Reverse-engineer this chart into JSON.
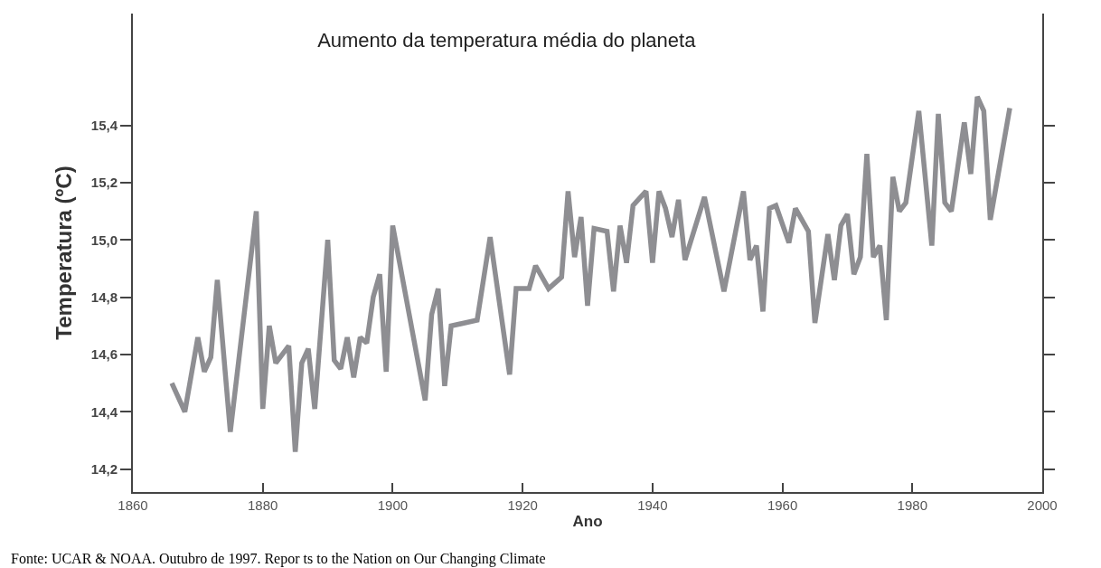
{
  "chart_data": {
    "type": "line",
    "title": "Aumento da temperatura média do planeta",
    "xlabel": "Ano",
    "ylabel": "Temperatura (ºC)",
    "x": [
      1866,
      1868,
      1870,
      1871,
      1872,
      1873,
      1875,
      1879,
      1880,
      1881,
      1882,
      1884,
      1885,
      1886,
      1887,
      1888,
      1890,
      1891,
      1892,
      1893,
      1894,
      1895,
      1896,
      1897,
      1898,
      1899,
      1900,
      1905,
      1906,
      1907,
      1908,
      1909,
      1913,
      1915,
      1918,
      1919,
      1921,
      1922,
      1924,
      1926,
      1927,
      1928,
      1929,
      1930,
      1931,
      1933,
      1934,
      1935,
      1936,
      1937,
      1939,
      1940,
      1941,
      1942,
      1943,
      1944,
      1945,
      1948,
      1951,
      1954,
      1955,
      1956,
      1957,
      1958,
      1959,
      1961,
      1962,
      1964,
      1965,
      1967,
      1968,
      1969,
      1970,
      1971,
      1972,
      1973,
      1974,
      1975,
      1976,
      1977,
      1978,
      1979,
      1981,
      1983,
      1984,
      1985,
      1986,
      1988,
      1989,
      1990,
      1991,
      1992,
      1995
    ],
    "series": [
      {
        "color": "#8e8e92",
        "values": [
          14.5,
          14.4,
          14.66,
          14.54,
          14.59,
          14.86,
          14.33,
          15.1,
          14.41,
          14.7,
          14.57,
          14.63,
          14.26,
          14.57,
          14.62,
          14.41,
          15.0,
          14.58,
          14.55,
          14.66,
          14.52,
          14.66,
          14.64,
          14.8,
          14.88,
          14.54,
          15.05,
          14.44,
          14.74,
          14.83,
          14.49,
          14.7,
          14.72,
          15.01,
          14.53,
          14.83,
          14.83,
          14.91,
          14.83,
          14.87,
          15.17,
          14.94,
          15.08,
          14.77,
          15.04,
          15.03,
          14.82,
          15.05,
          14.92,
          15.12,
          15.17,
          14.92,
          15.17,
          15.11,
          15.01,
          15.14,
          14.93,
          15.15,
          14.82,
          15.17,
          14.93,
          14.98,
          14.75,
          15.11,
          15.12,
          14.99,
          15.11,
          15.03,
          14.71,
          15.02,
          14.86,
          15.05,
          15.09,
          14.88,
          14.94,
          15.3,
          14.94,
          14.98,
          14.72,
          15.22,
          15.1,
          15.13,
          15.45,
          14.98,
          15.44,
          15.13,
          15.1,
          15.41,
          15.23,
          15.5,
          15.45,
          15.07,
          15.46
        ]
      }
    ],
    "xlim": [
      1860,
      2000
    ],
    "xticks": [
      1860,
      1880,
      1900,
      1920,
      1940,
      1960,
      1980,
      2000
    ],
    "ylim": [
      14.12,
      15.79
    ],
    "yticks": [
      {
        "value": 14.2,
        "label": "14,2"
      },
      {
        "value": 14.4,
        "label": "14,4"
      },
      {
        "value": 14.6,
        "label": "14,6"
      },
      {
        "value": 14.8,
        "label": "14,8"
      },
      {
        "value": 15.0,
        "label": "15,0"
      },
      {
        "value": 15.2,
        "label": "15,2"
      },
      {
        "value": 15.4,
        "label": "15,4"
      }
    ],
    "marker": "none",
    "line_style": "solid",
    "annotations": [
      "Fonte: UCAR & NOAA. Outubro de 1997. Repor ts to the Nation on Our Changing Climate"
    ]
  }
}
